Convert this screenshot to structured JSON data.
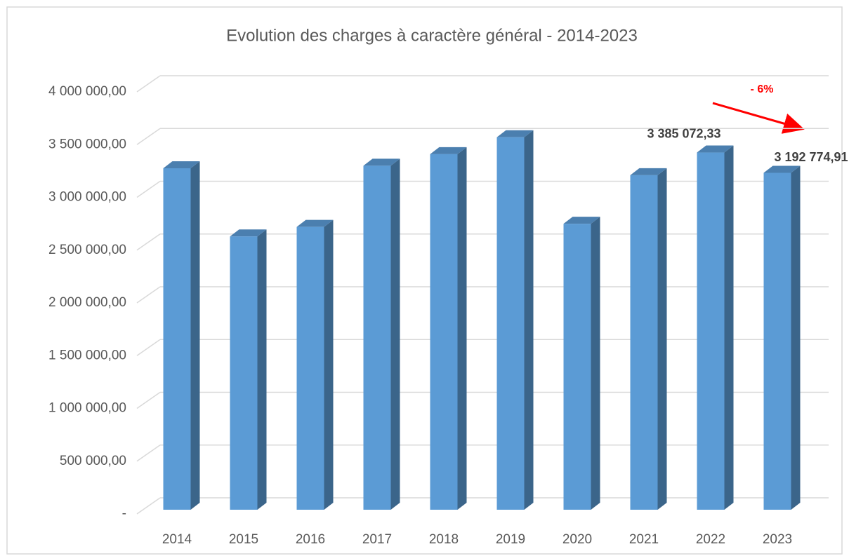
{
  "chart_data": {
    "type": "bar3d",
    "title": "Evolution des charges à caractère général - 2014-2023",
    "categories": [
      "2014",
      "2015",
      "2016",
      "2017",
      "2018",
      "2019",
      "2020",
      "2021",
      "2022",
      "2023"
    ],
    "values": [
      3236000,
      2590000,
      2680000,
      3260000,
      3370000,
      3530000,
      2710000,
      3170000,
      3385072.33,
      3192774.91
    ],
    "value_labels": [
      null,
      null,
      null,
      null,
      null,
      null,
      null,
      null,
      "3 385 072,33",
      "3 192 774,91"
    ],
    "color": "#5b9bd5",
    "ylim": [
      0,
      4000000
    ],
    "yticks": [
      {
        "value": 0,
        "label": "-"
      },
      {
        "value": 500000,
        "label": "500 000,00"
      },
      {
        "value": 1000000,
        "label": "1 000 000,00"
      },
      {
        "value": 1500000,
        "label": "1 500 000,00"
      },
      {
        "value": 2000000,
        "label": "2 000 000,00"
      },
      {
        "value": 2500000,
        "label": "2 500 000,00"
      },
      {
        "value": 3000000,
        "label": "3 000 000,00"
      },
      {
        "value": 3500000,
        "label": "3 500 000,00"
      },
      {
        "value": 4000000,
        "label": "4 000 000,00"
      }
    ],
    "grid": true,
    "annotations": [
      {
        "text": "- 6%",
        "color": "#ff0000"
      }
    ]
  }
}
